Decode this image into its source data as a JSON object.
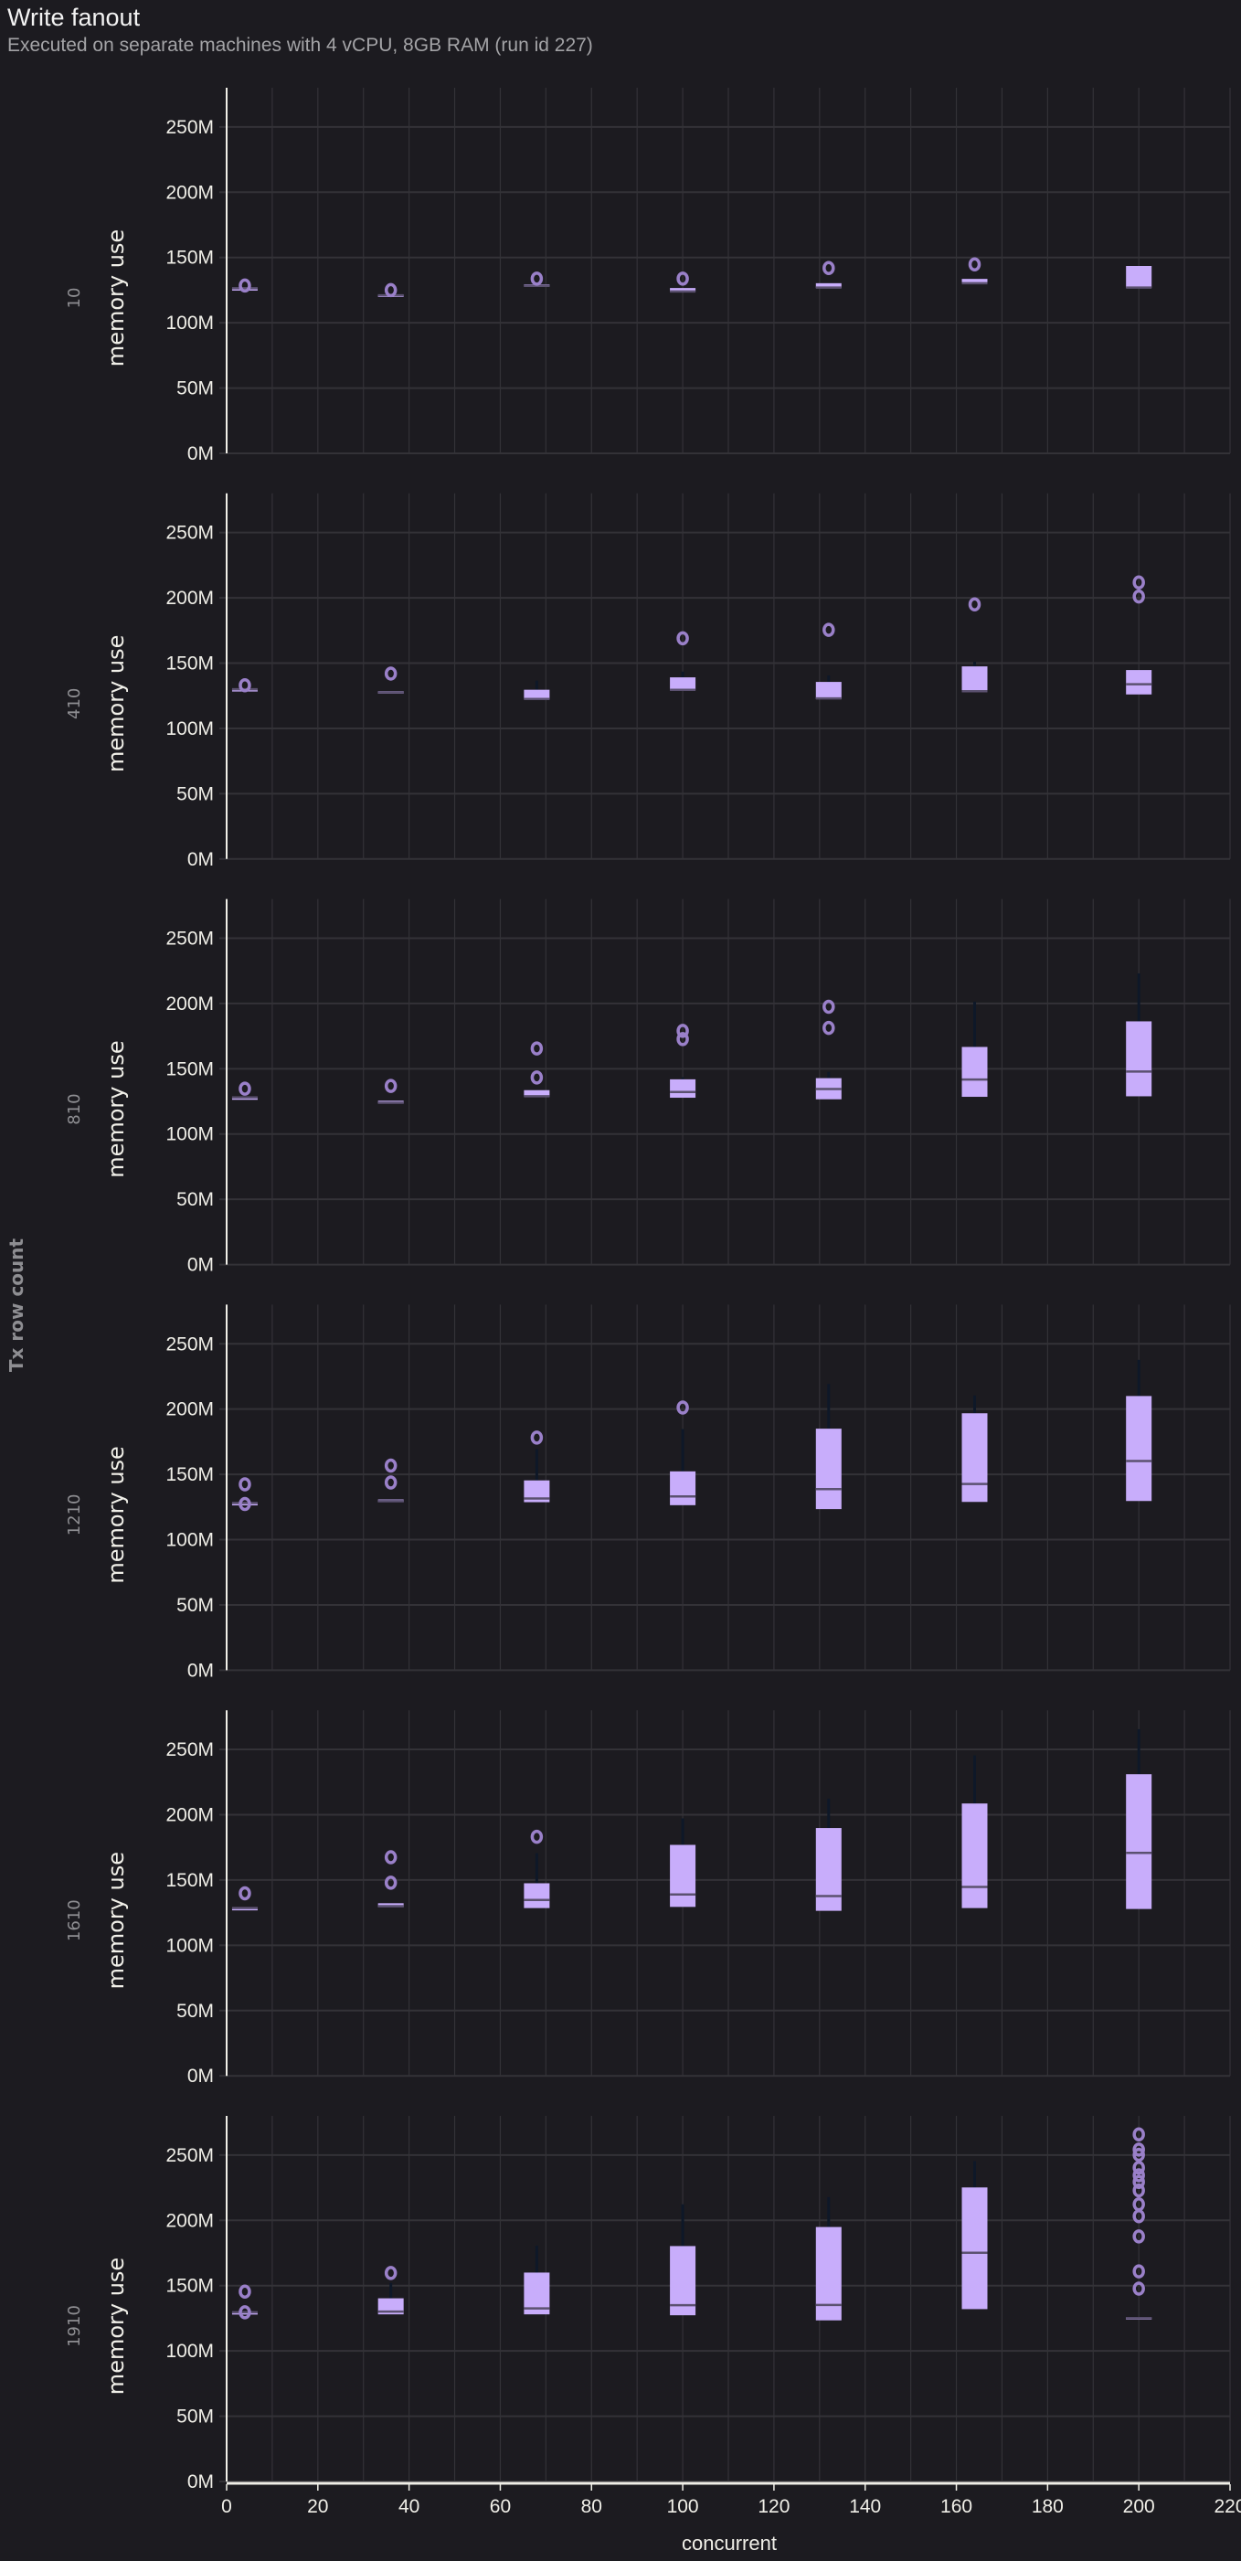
{
  "header": {
    "title": "Write fanout",
    "subtitle": "Executed on separate machines with 4 vCPU, 8GB RAM (run id 227)"
  },
  "colors": {
    "background": "#1c1b20",
    "grid": "#333237",
    "box_fill": "#c8adfb",
    "median": "#5b5170",
    "outlier": "#9a80c9",
    "whisker": "#0e1828",
    "axis": "#f0efe8"
  },
  "chart_data": {
    "type": "box",
    "xlabel": "concurrent",
    "ylabel": "memory use",
    "facet_label": "Tx row count",
    "y_unit": "M",
    "xlim": [
      0,
      220
    ],
    "ylim": [
      0,
      280
    ],
    "x_ticks": [
      0,
      20,
      40,
      60,
      80,
      100,
      120,
      140,
      160,
      180,
      200,
      220
    ],
    "y_ticks": [
      "0M",
      "50M",
      "100M",
      "150M",
      "200M",
      "250M"
    ],
    "grid": true,
    "facets": [
      {
        "label": "10",
        "boxes": [
          {
            "x": 4,
            "q1": 126.4,
            "median": 126.4,
            "q3": 126.4,
            "whisker_high": 126.4,
            "outliers": [
              128.5
            ]
          },
          {
            "x": 36,
            "q1": 121,
            "median": 121,
            "q3": 121.5,
            "whisker_high": 121.5,
            "outliers": [
              125
            ]
          },
          {
            "x": 68,
            "q1": 128.2,
            "median": 128.3,
            "q3": 129.4,
            "whisker_high": 129.4,
            "outliers": [
              133.8
            ]
          },
          {
            "x": 100,
            "q1": 123.8,
            "median": 124,
            "q3": 126.6,
            "whisker_high": 126.6,
            "outliers": [
              133.8
            ]
          },
          {
            "x": 132,
            "q1": 126.8,
            "median": 127,
            "q3": 130.3,
            "whisker_high": 130.3,
            "outliers": [
              141.9
            ]
          },
          {
            "x": 164,
            "q1": 130.1,
            "median": 130.3,
            "q3": 133.6,
            "whisker_high": 133.6,
            "outliers": [
              144.7
            ]
          },
          {
            "x": 200,
            "q1": 126.8,
            "median": 127,
            "q3": 143.5,
            "whisker_high": 143.5,
            "outliers": []
          }
        ]
      },
      {
        "label": "410",
        "boxes": [
          {
            "x": 4,
            "q1": 130,
            "median": 130,
            "q3": 130,
            "whisker_high": 130,
            "outliers": [
              133
            ]
          },
          {
            "x": 36,
            "q1": 126.6,
            "median": 127.5,
            "q3": 128.5,
            "whisker_high": 128.5,
            "outliers": [
              142
            ]
          },
          {
            "x": 68,
            "q1": 122.2,
            "median": 122.5,
            "q3": 129.6,
            "whisker_high": 136.6,
            "outliers": []
          },
          {
            "x": 100,
            "q1": 129.2,
            "median": 129.5,
            "q3": 139.1,
            "whisker_high": 143.5,
            "outliers": [
              169
            ]
          },
          {
            "x": 132,
            "q1": 122.5,
            "median": 123,
            "q3": 135.6,
            "whisker_high": 140.5,
            "outliers": [
              175.5
            ]
          },
          {
            "x": 164,
            "q1": 128.2,
            "median": 128.5,
            "q3": 147.5,
            "whisker_high": 151,
            "outliers": [
              195
            ]
          },
          {
            "x": 200,
            "q1": 126,
            "median": 133.8,
            "q3": 144.7,
            "whisker_high": 144.7,
            "outliers": [
              201,
              211.8
            ]
          }
        ]
      },
      {
        "label": "810",
        "boxes": [
          {
            "x": 4,
            "q1": 128,
            "median": 128,
            "q3": 128,
            "whisker_high": 128,
            "outliers": [
              134.7
            ]
          },
          {
            "x": 36,
            "q1": 123.4,
            "median": 124,
            "q3": 125.5,
            "whisker_high": 125.5,
            "outliers": [
              136.8
            ]
          },
          {
            "x": 68,
            "q1": 128.7,
            "median": 129,
            "q3": 133.6,
            "whisker_high": 133.6,
            "outliers": [
              143.3,
              165.5
            ]
          },
          {
            "x": 100,
            "q1": 127.8,
            "median": 132.2,
            "q3": 141.9,
            "whisker_high": 143.5,
            "outliers": [
              172.7,
              179
            ]
          },
          {
            "x": 132,
            "q1": 126.6,
            "median": 134.5,
            "q3": 142.8,
            "whisker_high": 147.5,
            "outliers": [
              181.3,
              197.5
            ]
          },
          {
            "x": 164,
            "q1": 128.5,
            "median": 141.7,
            "q3": 166.7,
            "whisker_high": 201.4,
            "outliers": []
          },
          {
            "x": 200,
            "q1": 128.9,
            "median": 147.9,
            "q3": 186.3,
            "whisker_high": 223,
            "outliers": []
          }
        ]
      },
      {
        "label": "1210",
        "boxes": [
          {
            "x": 4,
            "q1": 128,
            "median": 128,
            "q3": 128,
            "whisker_high": 128,
            "outliers": [
              127.3,
              142.4
            ]
          },
          {
            "x": 36,
            "q1": 128.7,
            "median": 129.5,
            "q3": 130.8,
            "whisker_high": 130.8,
            "outliers": [
              143.8,
              156.7
            ]
          },
          {
            "x": 68,
            "q1": 128.7,
            "median": 131.5,
            "q3": 145.4,
            "whisker_high": 169.4,
            "outliers": [
              178.2
            ]
          },
          {
            "x": 100,
            "q1": 126.4,
            "median": 133.1,
            "q3": 152.3,
            "whisker_high": 184.7,
            "outliers": [
              201.2
            ]
          },
          {
            "x": 132,
            "q1": 123.4,
            "median": 138.7,
            "q3": 185,
            "whisker_high": 219.2,
            "outliers": []
          },
          {
            "x": 164,
            "q1": 128.9,
            "median": 142.6,
            "q3": 196.8,
            "whisker_high": 210.4,
            "outliers": []
          },
          {
            "x": 200,
            "q1": 129.6,
            "median": 160.2,
            "q3": 210,
            "whisker_high": 237.7,
            "outliers": []
          }
        ]
      },
      {
        "label": "1610",
        "boxes": [
          {
            "x": 4,
            "q1": 128.5,
            "median": 128.5,
            "q3": 128.5,
            "whisker_high": 128.5,
            "outliers": [
              139.8
            ]
          },
          {
            "x": 36,
            "q1": 129.2,
            "median": 130,
            "q3": 132.2,
            "whisker_high": 132.2,
            "outliers": [
              147.9,
              167.4
            ]
          },
          {
            "x": 68,
            "q1": 128.5,
            "median": 134.7,
            "q3": 147.5,
            "whisker_high": 170.6,
            "outliers": [
              183.1
            ]
          },
          {
            "x": 100,
            "q1": 129.4,
            "median": 138.9,
            "q3": 176.9,
            "whisker_high": 197.2,
            "outliers": []
          },
          {
            "x": 132,
            "q1": 126.4,
            "median": 137.7,
            "q3": 189.8,
            "whisker_high": 212.3,
            "outliers": []
          },
          {
            "x": 164,
            "q1": 128.5,
            "median": 144.7,
            "q3": 208.6,
            "whisker_high": 245.4,
            "outliers": []
          },
          {
            "x": 200,
            "q1": 127.8,
            "median": 170.8,
            "q3": 231,
            "whisker_high": 265.5,
            "outliers": []
          }
        ]
      },
      {
        "label": "1910",
        "boxes": [
          {
            "x": 4,
            "q1": 129.6,
            "median": 129.6,
            "q3": 129.6,
            "whisker_high": 129.6,
            "outliers": [
              129.6,
              145.4
            ]
          },
          {
            "x": 36,
            "q1": 128,
            "median": 130.1,
            "q3": 140.3,
            "whisker_high": 152,
            "outliers": [
              159.7
            ]
          },
          {
            "x": 68,
            "q1": 128,
            "median": 132.6,
            "q3": 160,
            "whisker_high": 180.6,
            "outliers": []
          },
          {
            "x": 100,
            "q1": 127.3,
            "median": 135,
            "q3": 180.3,
            "whisker_high": 212.3,
            "outliers": []
          },
          {
            "x": 132,
            "q1": 123.4,
            "median": 135.2,
            "q3": 194.9,
            "whisker_high": 217.8,
            "outliers": []
          },
          {
            "x": 164,
            "q1": 132,
            "median": 175.2,
            "q3": 225.2,
            "whisker_high": 245.4,
            "outliers": []
          },
          {
            "x": 200,
            "q1": 124.8,
            "median": 125,
            "q3": 125.7,
            "whisker_high": 125.7,
            "outliers": [
              147.7,
              160.9,
              187.7,
              203.2,
              212.3,
              222.9,
              229.4,
              234.5,
              240.3,
              250.2,
              254.2,
              265.8
            ]
          }
        ]
      }
    ]
  }
}
